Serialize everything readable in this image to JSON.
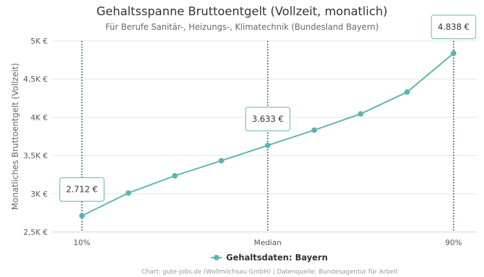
{
  "chart_data": {
    "type": "line",
    "title": "Gehaltsspanne Bruttoentgelt (Vollzeit, monatlich)",
    "subtitle": "Für Berufe Sanitär-, Heizungs-, Klimatechnik (Bundesland Bayern)",
    "ylabel": "Monatliches Bruttoentgelt (Vollzeit)",
    "xlabel": "",
    "x_tick_labels": [
      "10%",
      "Median",
      "90%"
    ],
    "y_ticks": [
      2500,
      3000,
      3500,
      4000,
      4500,
      5000
    ],
    "y_tick_labels": [
      "2,5K €",
      "3K €",
      "3,5K €",
      "4K €",
      "4,5K €",
      "5K €"
    ],
    "ylim": [
      2500,
      5000
    ],
    "grid": true,
    "legend_position": "bottom-center",
    "series": [
      {
        "name": "Gehaltsdaten: Bayern",
        "color": "#5ab4b0",
        "values": [
          2712,
          3010,
          3235,
          3432,
          3633,
          3832,
          4045,
          4330,
          4838
        ]
      }
    ],
    "markers": [
      {
        "index": 0,
        "label": "2.712 €"
      },
      {
        "index": 4,
        "label": "3.633 €"
      },
      {
        "index": 8,
        "label": "4.838 €"
      }
    ],
    "marker_line_color": "#1e6b86",
    "callout_border_color": "#5ab4b0",
    "credits": "Chart: gute-jobs.de (Wollmilchsau GmbH) | Datenquelle: Bundesagentur für Arbeit"
  }
}
